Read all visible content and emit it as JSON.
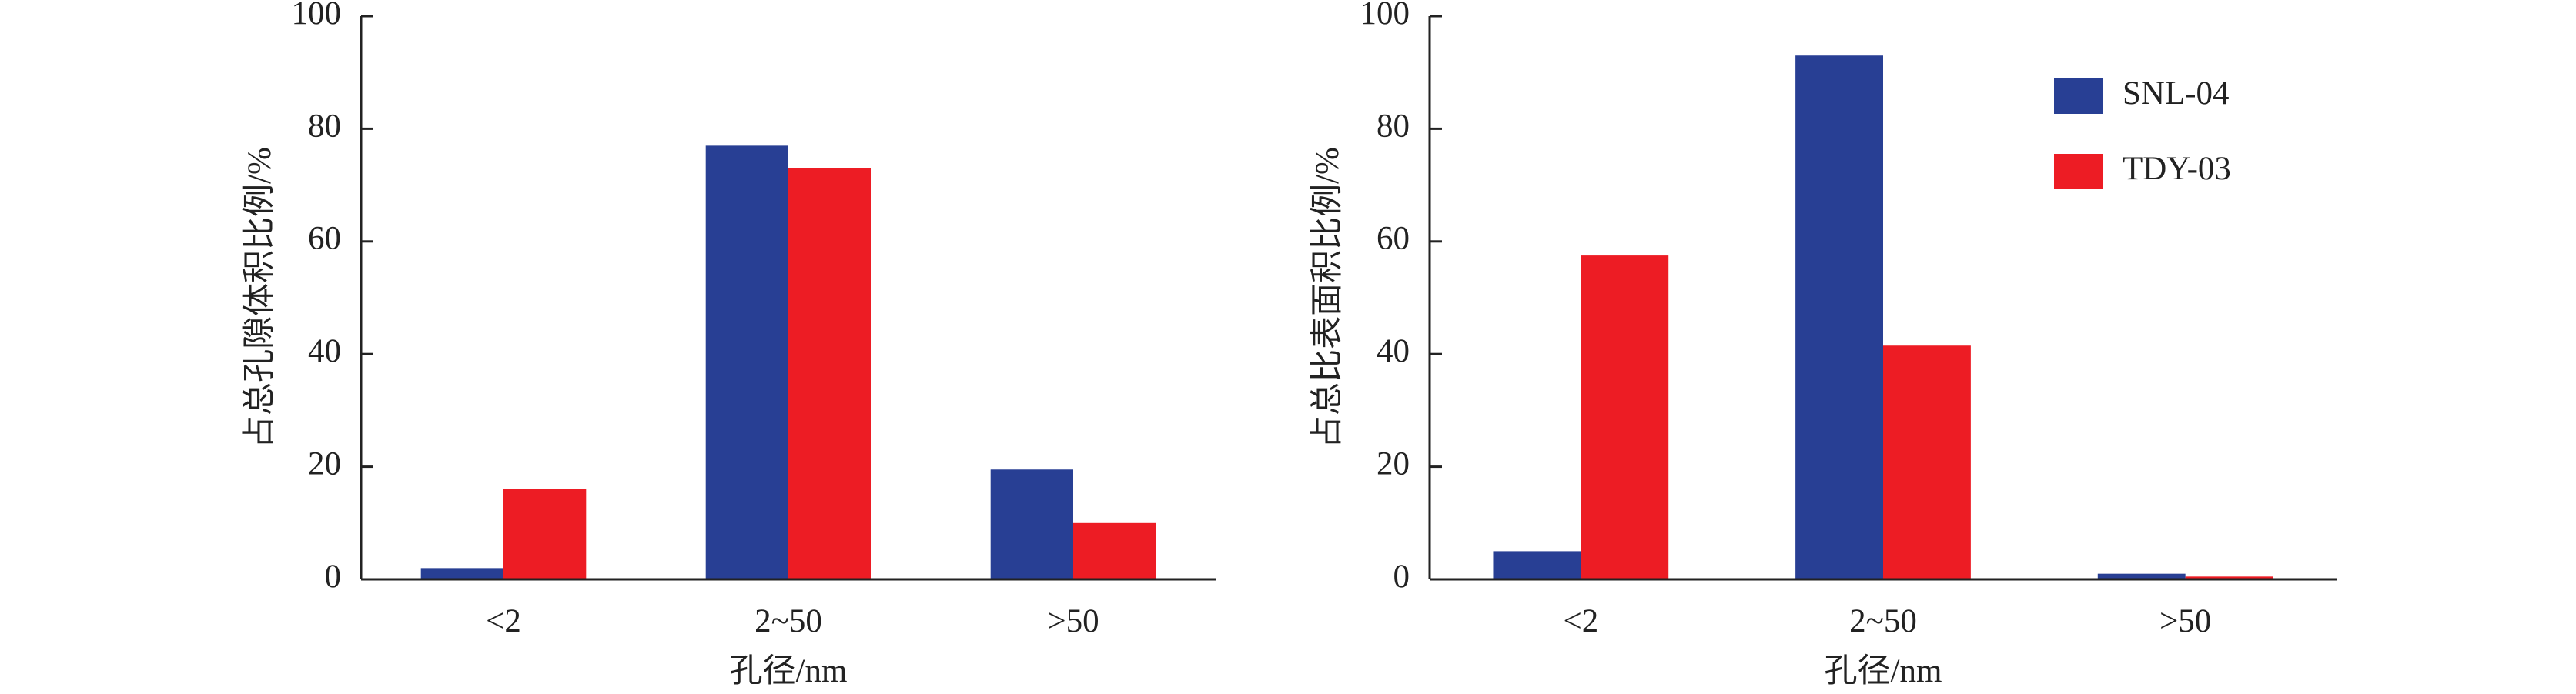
{
  "chart_data": [
    {
      "type": "bar",
      "ylabel": "占总孔隙体积比例/%",
      "xlabel": "孔径/nm",
      "categories": [
        "<2",
        "2~50",
        ">50"
      ],
      "series": [
        {
          "color": "#283f94",
          "values": [
            2,
            77,
            19.5
          ]
        },
        {
          "color": "#ed1c24",
          "values": [
            16,
            73,
            10
          ]
        }
      ],
      "ylim": [
        0,
        100
      ],
      "yticks": [
        0,
        20,
        40,
        60,
        80,
        100
      ]
    },
    {
      "type": "bar",
      "ylabel": "占总比表面积比例/%",
      "xlabel": "孔径/nm",
      "categories": [
        "<2",
        "2~50",
        ">50"
      ],
      "series": [
        {
          "name": "SNL-04",
          "color": "#283f94",
          "values": [
            5,
            93,
            1
          ]
        },
        {
          "name": "TDY-03",
          "color": "#ed1c24",
          "values": [
            57.5,
            41.5,
            0.5
          ]
        }
      ],
      "ylim": [
        0,
        100
      ],
      "yticks": [
        0,
        20,
        40,
        60,
        80,
        100
      ],
      "legend": "upper right"
    }
  ]
}
